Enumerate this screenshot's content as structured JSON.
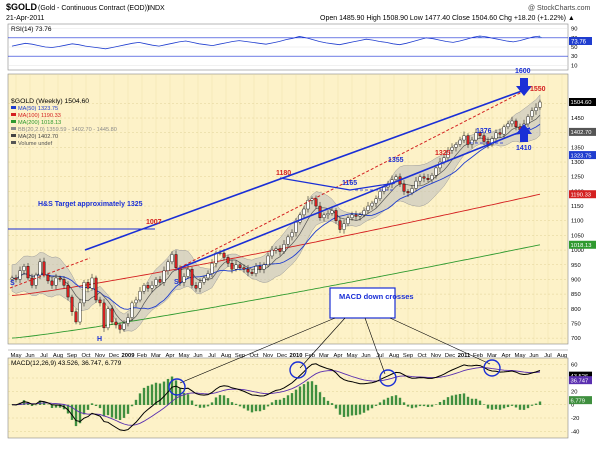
{
  "header": {
    "symbol": "$GOLD",
    "description": "(Gold - Continuous Contract (EOD))",
    "exchange": "INDX",
    "source": "@ StockCharts.com",
    "date": "21-Apr-2011",
    "quote": "Open 1485.90  High 1508.90  Low 1477.40  Close 1504.60  Chg +18.20 (+1.22%) ▲"
  },
  "rsi_panel": {
    "legend": "RSI(14) 73.76",
    "ticks": [
      90,
      70,
      50,
      30,
      10
    ],
    "last_value_label": "73.76",
    "levels": {
      "overbought": 70,
      "oversold": 30
    },
    "series": [
      52,
      55,
      58,
      56,
      53,
      50,
      49,
      51,
      54,
      57,
      55,
      52,
      50,
      48,
      46,
      49,
      52,
      55,
      58,
      60,
      57,
      54,
      52,
      55,
      58,
      61,
      63,
      60,
      57,
      55,
      53,
      56,
      59,
      62,
      64,
      62,
      60,
      58,
      56,
      59,
      62,
      66,
      69,
      73,
      70,
      66,
      62,
      59,
      57,
      55,
      58,
      61,
      64,
      67,
      65,
      62,
      60,
      57,
      55,
      58,
      62,
      66,
      70,
      68,
      65,
      62,
      60,
      63,
      67,
      71,
      74,
      72,
      69,
      66,
      63,
      61,
      64,
      68,
      72,
      73.76
    ]
  },
  "price_panel": {
    "legend": [
      {
        "text": "$GOLD (Weekly) 1504.60",
        "color": "#000000"
      },
      {
        "text": "MA(50) 1323.75",
        "color": "#1f3dcf"
      },
      {
        "text": "MA(100) 1190.33",
        "color": "#d42020"
      },
      {
        "text": "MA(200) 1018.13",
        "color": "#2f9a2f"
      },
      {
        "text": "BB(20,2.0) 1359.59 - 1402.70 - 1445.80",
        "color": "#8a8a8a"
      },
      {
        "text": "MA(20) 1402.70",
        "color": "#444444"
      },
      {
        "text": "Volume undef",
        "color": "#555555"
      }
    ],
    "price_ticks": [
      1500,
      1450,
      1400,
      1350,
      1300,
      1250,
      1200,
      1150,
      1100,
      1050,
      1000,
      950,
      900,
      850,
      800,
      750,
      700
    ],
    "right_labels": [
      {
        "text": "1504.60",
        "value": 1504.6,
        "bg": "#000000",
        "fg": "#ffffff"
      },
      {
        "text": "1402.70",
        "value": 1402.7,
        "bg": "#555555",
        "fg": "#ffffff"
      },
      {
        "text": "1323.75",
        "value": 1323.75,
        "bg": "#1f3dcf",
        "fg": "#ffffff"
      },
      {
        "text": "1190.33",
        "value": 1190.33,
        "bg": "#d42020",
        "fg": "#ffffff"
      },
      {
        "text": "1018.13",
        "value": 1018.13,
        "bg": "#2f9a2f",
        "fg": "#ffffff"
      }
    ],
    "annotations": [
      {
        "text": "H&S Target approximately 1325",
        "color": "#1a2fd6"
      },
      {
        "text": "1600",
        "color": "#1a2fd6"
      },
      {
        "text": "1550",
        "color": "#d42020"
      },
      {
        "text": "1410",
        "color": "#1a2fd6"
      },
      {
        "text": "1007",
        "color": "#d42020"
      },
      {
        "text": "1180",
        "color": "#d42020"
      },
      {
        "text": "1355",
        "color": "#1a2fd6"
      },
      {
        "text": "1325",
        "color": "#d42020"
      },
      {
        "text": "1376",
        "color": "#1a2fd6"
      },
      {
        "text": "1165",
        "color": "#1a2fd6"
      },
      {
        "text": "S",
        "color": "#1a2fd6"
      },
      {
        "text": "S",
        "color": "#1a2fd6"
      },
      {
        "text": "H",
        "color": "#1a2fd6"
      }
    ]
  },
  "macd_panel": {
    "legend": "MACD(12,26,9) 43.526, 36.747, 6.779",
    "ticks": [
      60,
      40,
      20,
      0,
      -20,
      -40
    ],
    "right_labels": [
      "43.526",
      "36.747",
      "6.779"
    ],
    "callout": "MACD down crosses"
  },
  "x_axis": {
    "labels": [
      "May",
      "Jun",
      "Jul",
      "Aug",
      "Sep",
      "Oct",
      "Nov",
      "Dec",
      "2009",
      "Feb",
      "Mar",
      "Apr",
      "May",
      "Jun",
      "Jul",
      "Aug",
      "Sep",
      "Oct",
      "Nov",
      "Dec",
      "2010",
      "Feb",
      "Mar",
      "Apr",
      "May",
      "Jun",
      "Jul",
      "Aug",
      "Sep",
      "Oct",
      "Nov",
      "Dec",
      "2011",
      "Feb",
      "Mar",
      "Apr",
      "May",
      "Jun",
      "Jul",
      "Aug"
    ],
    "year_labels": [
      "2009",
      "2010",
      "2011"
    ]
  },
  "chart_data": {
    "type": "candlestick",
    "title": "$GOLD (Gold - Continuous Contract (EOD)) INDX",
    "interval": "Weekly",
    "x_range": [
      "2008-05",
      "2011-08"
    ],
    "y_range": [
      680,
      1600
    ],
    "closes": [
      905,
      900,
      930,
      945,
      905,
      880,
      915,
      960,
      915,
      895,
      880,
      905,
      900,
      880,
      840,
      790,
      755,
      820,
      890,
      870,
      905,
      830,
      820,
      735,
      800,
      755,
      745,
      730,
      750,
      770,
      820,
      830,
      860,
      880,
      870,
      880,
      900,
      890,
      930,
      960,
      985,
      940,
      890,
      910,
      935,
      880,
      870,
      890,
      905,
      920,
      955,
      990,
      990,
      975,
      955,
      935,
      950,
      940,
      935,
      925,
      920,
      945,
      935,
      950,
      980,
      1000,
      1005,
      995,
      1020,
      1045,
      1060,
      1095,
      1120,
      1140,
      1170,
      1175,
      1150,
      1110,
      1120,
      1125,
      1135,
      1100,
      1070,
      1090,
      1110,
      1120,
      1115,
      1120,
      1135,
      1150,
      1160,
      1175,
      1200,
      1215,
      1225,
      1240,
      1250,
      1225,
      1200,
      1195,
      1210,
      1235,
      1250,
      1245,
      1240,
      1255,
      1280,
      1300,
      1315,
      1340,
      1350,
      1360,
      1375,
      1390,
      1360,
      1375,
      1400,
      1390,
      1370,
      1360,
      1380,
      1400,
      1395,
      1420,
      1430,
      1440,
      1420,
      1410,
      1430,
      1455,
      1475,
      1486,
      1504.6
    ],
    "moving_averages": [
      {
        "name": "MA(50)",
        "start": 880,
        "end": 1323.75
      },
      {
        "name": "MA(100)",
        "start": 845,
        "end": 1190.33
      },
      {
        "name": "MA(200)",
        "start": 700,
        "end": 1018.13
      }
    ],
    "channel": {
      "lower": [
        [
          2009.28,
          860
        ],
        [
          2011.33,
          1410
        ]
      ],
      "upper": [
        [
          2008.95,
          900
        ],
        [
          2011.33,
          1600
        ]
      ]
    },
    "last": {
      "open": 1485.9,
      "high": 1508.9,
      "low": 1477.4,
      "close": 1504.6,
      "chg": 18.2,
      "chg_pct": 1.22
    }
  }
}
